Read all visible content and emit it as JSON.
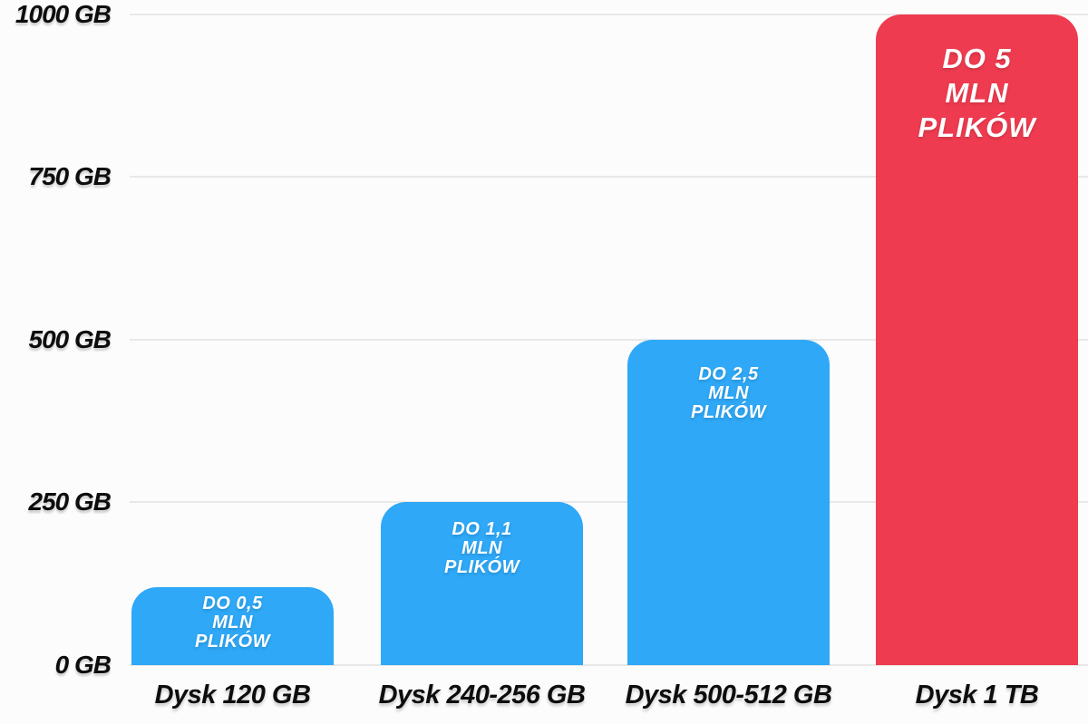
{
  "colors": {
    "background": "#fcfcfc",
    "bar_blue": "#2ea8f7",
    "bar_red": "#ef3b4f",
    "gridline": "#e8e8e8",
    "axis_text": "#0d0d0d",
    "bar_label_text": "#ffffff"
  },
  "chart_data": {
    "type": "bar",
    "title": "",
    "xlabel": "",
    "ylabel": "",
    "unit": "GB",
    "ylim": [
      0,
      1000
    ],
    "yticks": [
      0,
      250,
      500,
      750,
      1000
    ],
    "ytick_labels": [
      "0 GB",
      "250 GB",
      "500 GB",
      "750 GB",
      "1000 GB"
    ],
    "grid": true,
    "legend": false,
    "categories": [
      "Dysk 120 GB",
      "Dysk 240-256 GB",
      "Dysk 500-512 GB",
      "Dysk 1 TB"
    ],
    "values": [
      120,
      250,
      500,
      1000
    ],
    "bars": [
      {
        "category": "Dysk 120 GB",
        "value_gb": 120,
        "files_mln": 0.5,
        "label_lines": [
          "DO 0,5",
          "MLN",
          "PLIKÓW"
        ],
        "color": "#2ea8f7",
        "emphasis": false
      },
      {
        "category": "Dysk 240-256 GB",
        "value_gb": 250,
        "files_mln": 1.1,
        "label_lines": [
          "DO 1,1",
          "MLN",
          "PLIKÓW"
        ],
        "color": "#2ea8f7",
        "emphasis": false
      },
      {
        "category": "Dysk 500-512 GB",
        "value_gb": 500,
        "files_mln": 2.5,
        "label_lines": [
          "DO 2,5",
          "MLN",
          "PLIKÓW"
        ],
        "color": "#2ea8f7",
        "emphasis": false
      },
      {
        "category": "Dysk 1 TB",
        "value_gb": 1000,
        "files_mln": 5,
        "label_lines": [
          "DO 5",
          "MLN",
          "PLIKÓW"
        ],
        "color": "#ef3b4f",
        "emphasis": true
      }
    ]
  }
}
